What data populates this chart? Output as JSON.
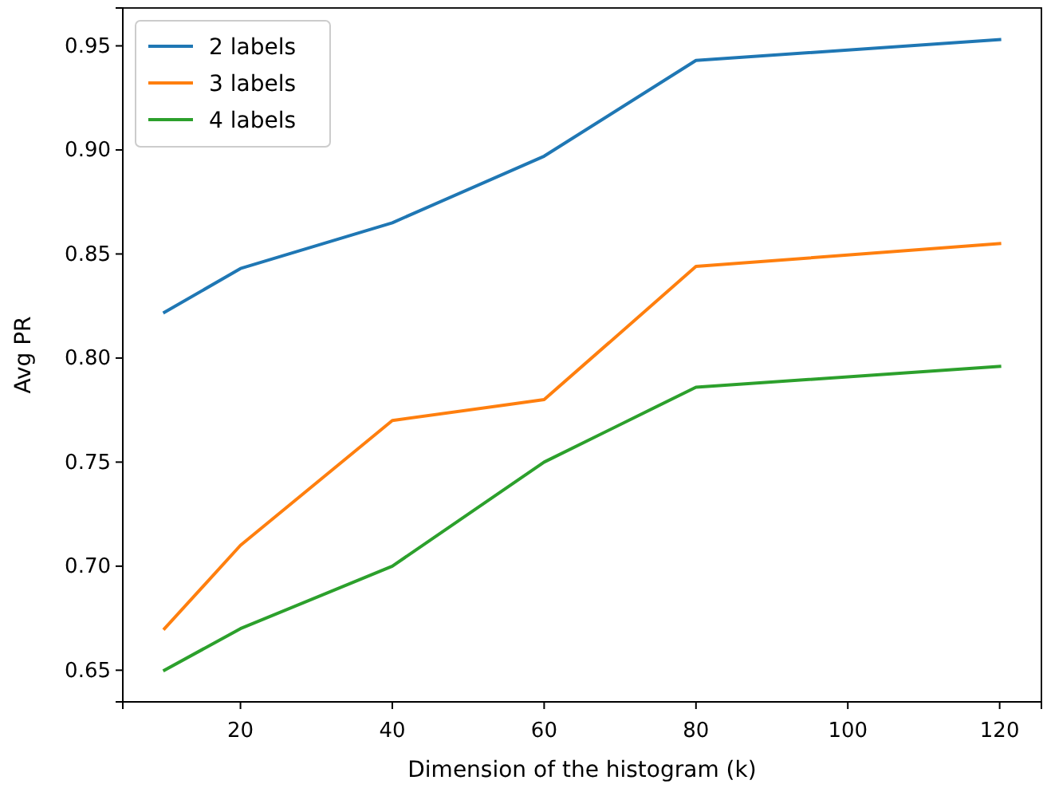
{
  "chart_data": {
    "type": "line",
    "xlabel": "Dimension of the histogram (k)",
    "ylabel": "Avg PR",
    "x": [
      10,
      20,
      40,
      60,
      80,
      120
    ],
    "series": [
      {
        "name": "2 labels",
        "color": "#1f77b4",
        "values": [
          0.822,
          0.843,
          0.865,
          0.897,
          0.943,
          0.953
        ]
      },
      {
        "name": "3 labels",
        "color": "#ff7f0e",
        "values": [
          0.67,
          0.71,
          0.77,
          0.78,
          0.844,
          0.855
        ]
      },
      {
        "name": "4 labels",
        "color": "#2ca02c",
        "values": [
          0.65,
          0.67,
          0.7,
          0.75,
          0.786,
          0.796
        ]
      }
    ],
    "xlim": [
      4.5,
      125.5
    ],
    "xticks": [
      20,
      40,
      60,
      80,
      100,
      120
    ],
    "ylim": [
      0.6348,
      0.9682
    ],
    "yticks": [
      {
        "value": 0.65,
        "label": "0.65"
      },
      {
        "value": 0.7,
        "label": "0.70"
      },
      {
        "value": 0.75,
        "label": "0.75"
      },
      {
        "value": 0.8,
        "label": "0.80"
      },
      {
        "value": 0.85,
        "label": "0.85"
      },
      {
        "value": 0.9,
        "label": "0.90"
      },
      {
        "value": 0.95,
        "label": "0.95"
      }
    ],
    "grid": false,
    "legend": "top left",
    "marker": "none",
    "line_style": "solid"
  }
}
